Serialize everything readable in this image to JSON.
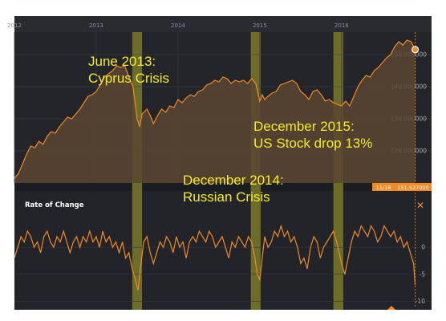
{
  "chart_data": [
    {
      "type": "area",
      "x_ticks": [
        "2012",
        "2013",
        "2014",
        "2015",
        "2016"
      ],
      "y_ticks": [
        "120.000000",
        "130.000000",
        "140.000000",
        "150.000000"
      ],
      "ylim": [
        110,
        157
      ],
      "series": [
        {
          "values": [
            [
              2012.0,
              111.5
            ],
            [
              2012.05,
              113.0
            ],
            [
              2012.1,
              116.0
            ],
            [
              2012.15,
              119.0
            ],
            [
              2012.2,
              121.5
            ],
            [
              2012.25,
              121.0
            ],
            [
              2012.3,
              123.0
            ],
            [
              2012.35,
              122.0
            ],
            [
              2012.4,
              124.5
            ],
            [
              2012.45,
              126.0
            ],
            [
              2012.5,
              125.5
            ],
            [
              2012.55,
              127.5
            ],
            [
              2012.6,
              129.0
            ],
            [
              2012.65,
              130.5
            ],
            [
              2012.7,
              130.0
            ],
            [
              2012.75,
              131.5
            ],
            [
              2012.8,
              133.0
            ],
            [
              2012.85,
              135.0
            ],
            [
              2012.9,
              137.0
            ],
            [
              2012.95,
              137.5
            ],
            [
              2013.0,
              138.5
            ],
            [
              2013.05,
              140.5
            ],
            [
              2013.1,
              143.0
            ],
            [
              2013.15,
              144.0
            ],
            [
              2013.2,
              145.0
            ],
            [
              2013.25,
              146.5
            ],
            [
              2013.3,
              146.0
            ],
            [
              2013.35,
              146.5
            ],
            [
              2013.4,
              143.0
            ],
            [
              2013.45,
              140.0
            ],
            [
              2013.5,
              130.0
            ],
            [
              2013.53,
              127.5
            ],
            [
              2013.56,
              131.5
            ],
            [
              2013.62,
              133.0
            ],
            [
              2013.66,
              131.0
            ],
            [
              2013.7,
              128.5
            ],
            [
              2013.75,
              131.0
            ],
            [
              2013.8,
              133.0
            ],
            [
              2013.85,
              132.0
            ],
            [
              2013.9,
              134.0
            ],
            [
              2013.95,
              133.5
            ],
            [
              2014.0,
              136.0
            ],
            [
              2014.05,
              135.0
            ],
            [
              2014.1,
              136.5
            ],
            [
              2014.15,
              137.5
            ],
            [
              2014.2,
              137.0
            ],
            [
              2014.25,
              138.5
            ],
            [
              2014.3,
              139.0
            ],
            [
              2014.35,
              140.5
            ],
            [
              2014.4,
              141.0
            ],
            [
              2014.45,
              142.0
            ],
            [
              2014.5,
              141.5
            ],
            [
              2014.55,
              143.0
            ],
            [
              2014.6,
              142.5
            ],
            [
              2014.65,
              141.0
            ],
            [
              2014.7,
              142.0
            ],
            [
              2014.75,
              141.5
            ],
            [
              2014.8,
              142.0
            ],
            [
              2014.85,
              141.0
            ],
            [
              2014.9,
              142.5
            ],
            [
              2014.95,
              141.0
            ],
            [
              2015.0,
              135.5
            ],
            [
              2015.03,
              137.5
            ],
            [
              2015.06,
              136.0
            ],
            [
              2015.1,
              137.0
            ],
            [
              2015.15,
              138.0
            ],
            [
              2015.2,
              138.5
            ],
            [
              2015.25,
              140.5
            ],
            [
              2015.3,
              141.0
            ],
            [
              2015.35,
              141.5
            ],
            [
              2015.4,
              142.0
            ],
            [
              2015.45,
              141.0
            ],
            [
              2015.5,
              138.5
            ],
            [
              2015.55,
              137.5
            ],
            [
              2015.6,
              136.0
            ],
            [
              2015.65,
              138.5
            ],
            [
              2015.7,
              139.0
            ],
            [
              2015.75,
              137.5
            ],
            [
              2015.8,
              135.5
            ],
            [
              2015.85,
              136.0
            ],
            [
              2015.9,
              135.0
            ],
            [
              2015.95,
              134.5
            ],
            [
              2016.0,
              134.0
            ],
            [
              2016.05,
              135.5
            ],
            [
              2016.1,
              134.0
            ],
            [
              2016.15,
              137.0
            ],
            [
              2016.2,
              140.0
            ],
            [
              2016.25,
              142.0
            ],
            [
              2016.3,
              143.5
            ],
            [
              2016.35,
              143.0
            ],
            [
              2016.4,
              145.0
            ],
            [
              2016.45,
              146.0
            ],
            [
              2016.5,
              147.5
            ],
            [
              2016.55,
              149.0
            ],
            [
              2016.6,
              150.0
            ],
            [
              2016.65,
              152.5
            ],
            [
              2016.7,
              154.0
            ],
            [
              2016.75,
              153.0
            ],
            [
              2016.8,
              154.5
            ],
            [
              2016.85,
              154.0
            ],
            [
              2016.9,
              151.5
            ]
          ]
        }
      ],
      "marker": {
        "x": 2016.9,
        "y": 151.527,
        "date_label": "11/18",
        "value_label": "151.527000"
      },
      "grid": true
    },
    {
      "type": "line",
      "title": "Rate of Change",
      "y_ticks": [
        "0",
        "-5",
        "-10"
      ],
      "ylim": [
        -11,
        6
      ],
      "series": [
        {
          "values": [
            [
              2012.0,
              -2
            ],
            [
              2012.04,
              0
            ],
            [
              2012.08,
              2
            ],
            [
              2012.12,
              1
            ],
            [
              2012.16,
              3
            ],
            [
              2012.2,
              2
            ],
            [
              2012.24,
              0
            ],
            [
              2012.28,
              1
            ],
            [
              2012.32,
              -1
            ],
            [
              2012.36,
              2
            ],
            [
              2012.4,
              3
            ],
            [
              2012.44,
              1
            ],
            [
              2012.48,
              0
            ],
            [
              2012.52,
              2
            ],
            [
              2012.56,
              1
            ],
            [
              2012.6,
              3
            ],
            [
              2012.64,
              1
            ],
            [
              2012.68,
              -1
            ],
            [
              2012.72,
              1
            ],
            [
              2012.76,
              2
            ],
            [
              2012.8,
              0
            ],
            [
              2012.84,
              2
            ],
            [
              2012.88,
              1
            ],
            [
              2012.92,
              3
            ],
            [
              2012.96,
              1
            ],
            [
              2013.0,
              2
            ],
            [
              2013.04,
              0
            ],
            [
              2013.08,
              3
            ],
            [
              2013.12,
              1
            ],
            [
              2013.16,
              2
            ],
            [
              2013.2,
              0
            ],
            [
              2013.24,
              1
            ],
            [
              2013.28,
              -1
            ],
            [
              2013.32,
              1
            ],
            [
              2013.36,
              -2
            ],
            [
              2013.4,
              -1
            ],
            [
              2013.44,
              -4
            ],
            [
              2013.48,
              -6
            ],
            [
              2013.51,
              -8
            ],
            [
              2013.54,
              -4
            ],
            [
              2013.58,
              1
            ],
            [
              2013.62,
              2
            ],
            [
              2013.66,
              -1
            ],
            [
              2013.7,
              -3
            ],
            [
              2013.74,
              -1
            ],
            [
              2013.78,
              1
            ],
            [
              2013.82,
              0
            ],
            [
              2013.86,
              2
            ],
            [
              2013.9,
              1
            ],
            [
              2013.94,
              -1
            ],
            [
              2013.98,
              2
            ],
            [
              2014.02,
              0
            ],
            [
              2014.06,
              1
            ],
            [
              2014.1,
              -2
            ],
            [
              2014.14,
              1
            ],
            [
              2014.18,
              2
            ],
            [
              2014.22,
              1
            ],
            [
              2014.26,
              3
            ],
            [
              2014.3,
              2
            ],
            [
              2014.34,
              1
            ],
            [
              2014.38,
              3
            ],
            [
              2014.42,
              2
            ],
            [
              2014.46,
              0
            ],
            [
              2014.5,
              1
            ],
            [
              2014.54,
              2
            ],
            [
              2014.58,
              0
            ],
            [
              2014.62,
              -2
            ],
            [
              2014.66,
              1
            ],
            [
              2014.7,
              0
            ],
            [
              2014.74,
              2
            ],
            [
              2014.78,
              1
            ],
            [
              2014.82,
              0
            ],
            [
              2014.86,
              2
            ],
            [
              2014.9,
              1
            ],
            [
              2014.94,
              -2
            ],
            [
              2014.97,
              -5
            ],
            [
              2015.0,
              -6
            ],
            [
              2015.03,
              -2
            ],
            [
              2015.06,
              2
            ],
            [
              2015.1,
              0
            ],
            [
              2015.14,
              1
            ],
            [
              2015.18,
              3
            ],
            [
              2015.22,
              2
            ],
            [
              2015.26,
              4
            ],
            [
              2015.3,
              2
            ],
            [
              2015.34,
              3
            ],
            [
              2015.38,
              1
            ],
            [
              2015.42,
              2
            ],
            [
              2015.46,
              0
            ],
            [
              2015.5,
              -3
            ],
            [
              2015.54,
              -2
            ],
            [
              2015.58,
              -4
            ],
            [
              2015.62,
              0
            ],
            [
              2015.66,
              2
            ],
            [
              2015.7,
              1
            ],
            [
              2015.74,
              -2
            ],
            [
              2015.78,
              0
            ],
            [
              2015.82,
              1
            ],
            [
              2015.86,
              2
            ],
            [
              2015.9,
              3
            ],
            [
              2015.94,
              1
            ],
            [
              2016.0,
              -3
            ],
            [
              2016.04,
              -5
            ],
            [
              2016.08,
              -2
            ],
            [
              2016.12,
              1
            ],
            [
              2016.16,
              3
            ],
            [
              2016.2,
              2
            ],
            [
              2016.24,
              4
            ],
            [
              2016.28,
              3
            ],
            [
              2016.32,
              2
            ],
            [
              2016.36,
              4
            ],
            [
              2016.4,
              3
            ],
            [
              2016.44,
              1
            ],
            [
              2016.48,
              2
            ],
            [
              2016.52,
              4
            ],
            [
              2016.56,
              3
            ],
            [
              2016.6,
              2
            ],
            [
              2016.64,
              3
            ],
            [
              2016.68,
              1
            ],
            [
              2016.72,
              2
            ],
            [
              2016.76,
              0
            ],
            [
              2016.8,
              1
            ],
            [
              2016.84,
              -1
            ],
            [
              2016.88,
              -3
            ],
            [
              2016.9,
              -7
            ]
          ]
        }
      ],
      "grid": true
    }
  ],
  "highlight_bands": [
    {
      "start": 2013.44,
      "end": 2013.56
    },
    {
      "start": 2014.89,
      "end": 2015.01
    },
    {
      "start": 2015.9,
      "end": 2016.02
    }
  ],
  "annotations": [
    {
      "lines": [
        "June 2013:",
        "Cyprus Crisis"
      ]
    },
    {
      "lines": [
        "December 2015:",
        "US Stock drop 13%"
      ]
    },
    {
      "lines": [
        "December 2014:",
        "Russian Crisis"
      ]
    }
  ],
  "colors": {
    "line": "#f08a24",
    "area_fill": "#5a4531",
    "band": "#7a7a2a",
    "annotation_text": "#f4ec26",
    "background": "#222329"
  },
  "icons": {
    "close": "close-icon"
  }
}
